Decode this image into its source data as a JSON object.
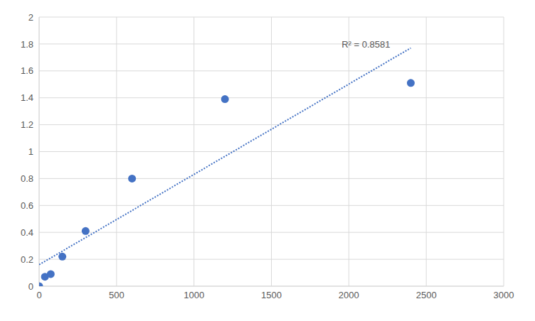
{
  "chart_data": {
    "type": "scatter",
    "series": [
      {
        "type": "scatter",
        "color": "#4472c4",
        "marker": "circle",
        "x": [
          0,
          37.5,
          75,
          150,
          300,
          600,
          1200,
          2400
        ],
        "values": [
          0,
          0.07,
          0.09,
          0.22,
          0.41,
          0.8,
          1.39,
          1.51
        ]
      },
      {
        "type": "line",
        "color": "#4472c4",
        "line_style": "dotted",
        "x": [
          0,
          2400
        ],
        "values": [
          0.16,
          1.77
        ]
      }
    ],
    "annotations": [
      {
        "text": "R² = 0.8581",
        "x": 2110,
        "y": 1.8
      }
    ],
    "xlim": [
      0,
      3000
    ],
    "xticks": [
      0,
      500,
      1000,
      1500,
      2000,
      2500,
      3000
    ],
    "ylim": [
      0,
      2
    ],
    "yticks": [
      0,
      0.2,
      0.4,
      0.6,
      0.8,
      1,
      1.2,
      1.4,
      1.6,
      1.8,
      2
    ],
    "grid": true
  }
}
